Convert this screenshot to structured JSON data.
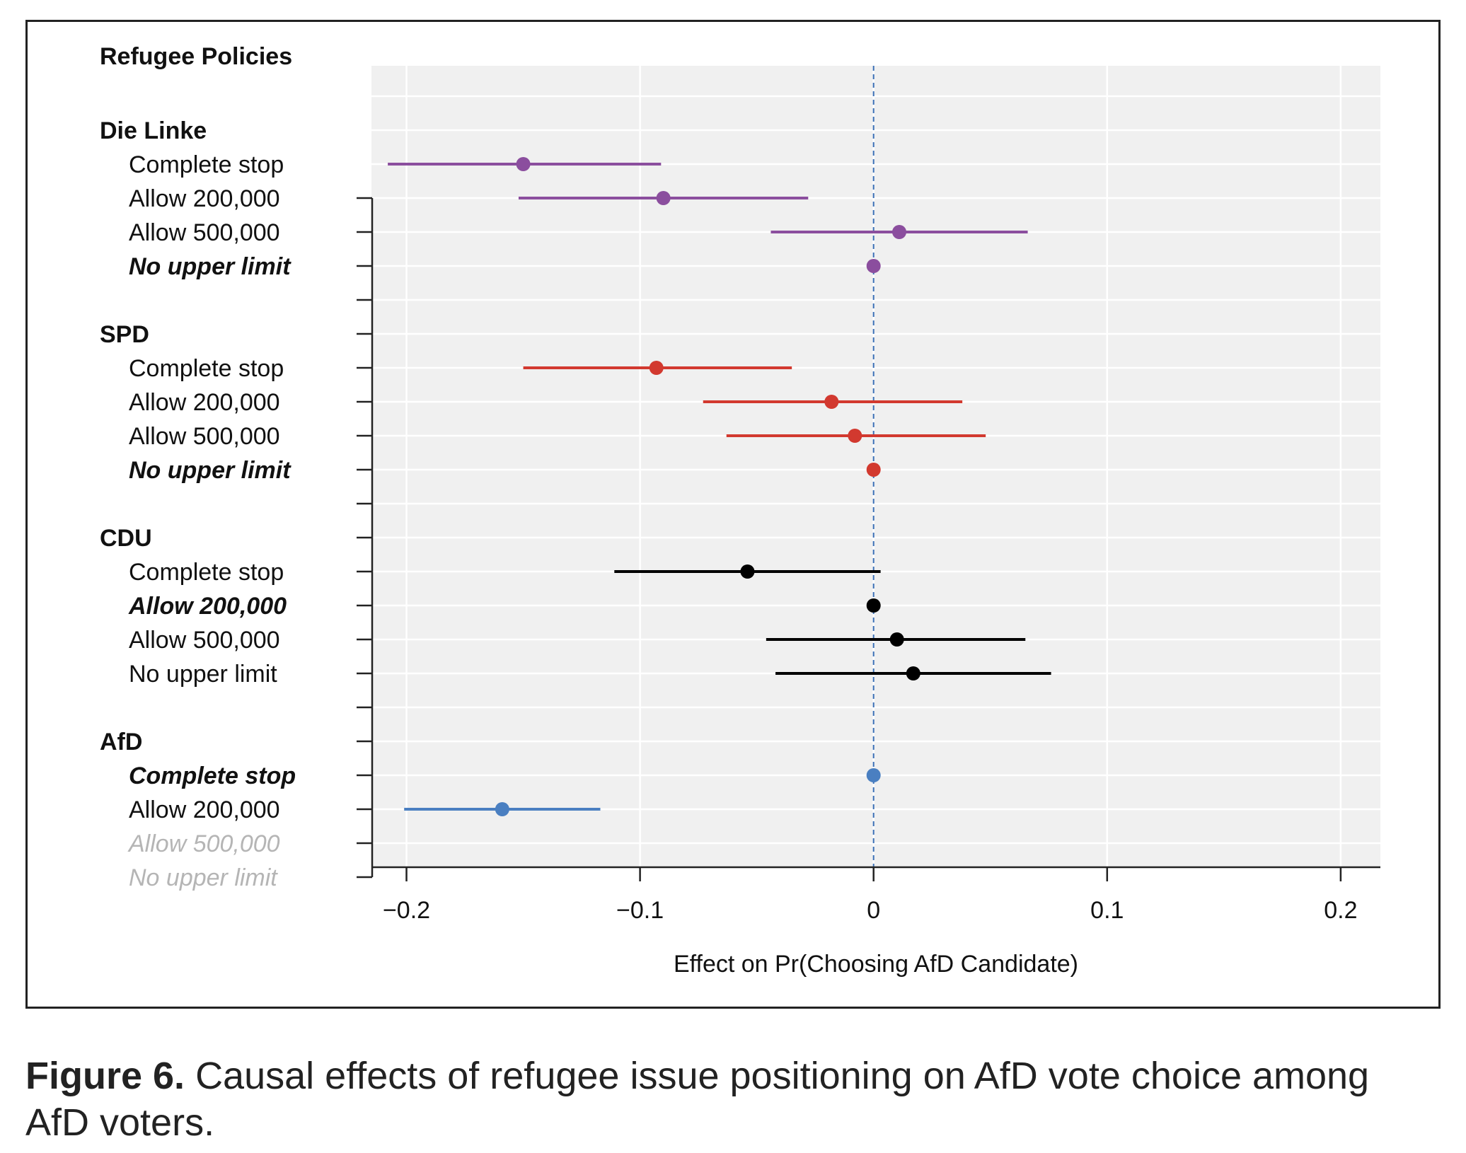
{
  "chart_data": {
    "type": "forest",
    "xlabel": "Effect on Pr(Choosing AfD Candidate)",
    "xlim": [
      -0.215,
      0.217
    ],
    "xticks": [
      -0.2,
      -0.1,
      0,
      0.1,
      0.2
    ],
    "xtick_labels": [
      "−0.2",
      "−0.1",
      "0",
      "0.1",
      "0.2"
    ],
    "reference_line": 0,
    "grid": true,
    "header": "Refugee Policies",
    "groups": [
      {
        "name": "Die Linke",
        "color": "#8b4e9e",
        "rows": [
          {
            "label": "Complete stop",
            "estimate": -0.15,
            "lo": -0.208,
            "hi": -0.091,
            "style": "normal"
          },
          {
            "label": "Allow 200,000",
            "estimate": -0.09,
            "lo": -0.152,
            "hi": -0.028,
            "style": "normal"
          },
          {
            "label": "Allow 500,000",
            "estimate": 0.011,
            "lo": -0.044,
            "hi": 0.066,
            "style": "normal"
          },
          {
            "label": "No upper limit",
            "estimate": 0.0,
            "lo": null,
            "hi": null,
            "style": "reference"
          }
        ]
      },
      {
        "name": "SPD",
        "color": "#d2392f",
        "rows": [
          {
            "label": "Complete stop",
            "estimate": -0.093,
            "lo": -0.15,
            "hi": -0.035,
            "style": "normal"
          },
          {
            "label": "Allow 200,000",
            "estimate": -0.018,
            "lo": -0.073,
            "hi": 0.038,
            "style": "normal"
          },
          {
            "label": "Allow 500,000",
            "estimate": -0.008,
            "lo": -0.063,
            "hi": 0.048,
            "style": "normal"
          },
          {
            "label": "No upper limit",
            "estimate": 0.0,
            "lo": null,
            "hi": null,
            "style": "reference"
          }
        ]
      },
      {
        "name": "CDU",
        "color": "#000000",
        "rows": [
          {
            "label": "Complete stop",
            "estimate": -0.054,
            "lo": -0.111,
            "hi": 0.003,
            "style": "normal"
          },
          {
            "label": "Allow 200,000",
            "estimate": 0.0,
            "lo": null,
            "hi": null,
            "style": "reference"
          },
          {
            "label": "Allow 500,000",
            "estimate": 0.01,
            "lo": -0.046,
            "hi": 0.065,
            "style": "normal"
          },
          {
            "label": "No upper limit",
            "estimate": 0.017,
            "lo": -0.042,
            "hi": 0.076,
            "style": "normal"
          }
        ]
      },
      {
        "name": "AfD",
        "color": "#4a7fc1",
        "rows": [
          {
            "label": "Complete stop",
            "estimate": 0.0,
            "lo": null,
            "hi": null,
            "style": "reference"
          },
          {
            "label": "Allow 200,000",
            "estimate": -0.159,
            "lo": -0.201,
            "hi": -0.117,
            "style": "normal"
          },
          {
            "label": "Allow 500,000",
            "estimate": null,
            "lo": null,
            "hi": null,
            "style": "empty"
          },
          {
            "label": "No upper limit",
            "estimate": null,
            "lo": null,
            "hi": null,
            "style": "empty"
          }
        ]
      }
    ]
  },
  "caption": {
    "label": "Figure 6.",
    "text": "Causal effects of refugee issue positioning on AfD vote choice among AfD voters."
  },
  "colors": {
    "panel_bg": "#f0f0f0",
    "grid": "#ffffff",
    "ref_line": "#3a6fb5",
    "empty_label": "#b5b5b5",
    "axis": "#222222"
  }
}
